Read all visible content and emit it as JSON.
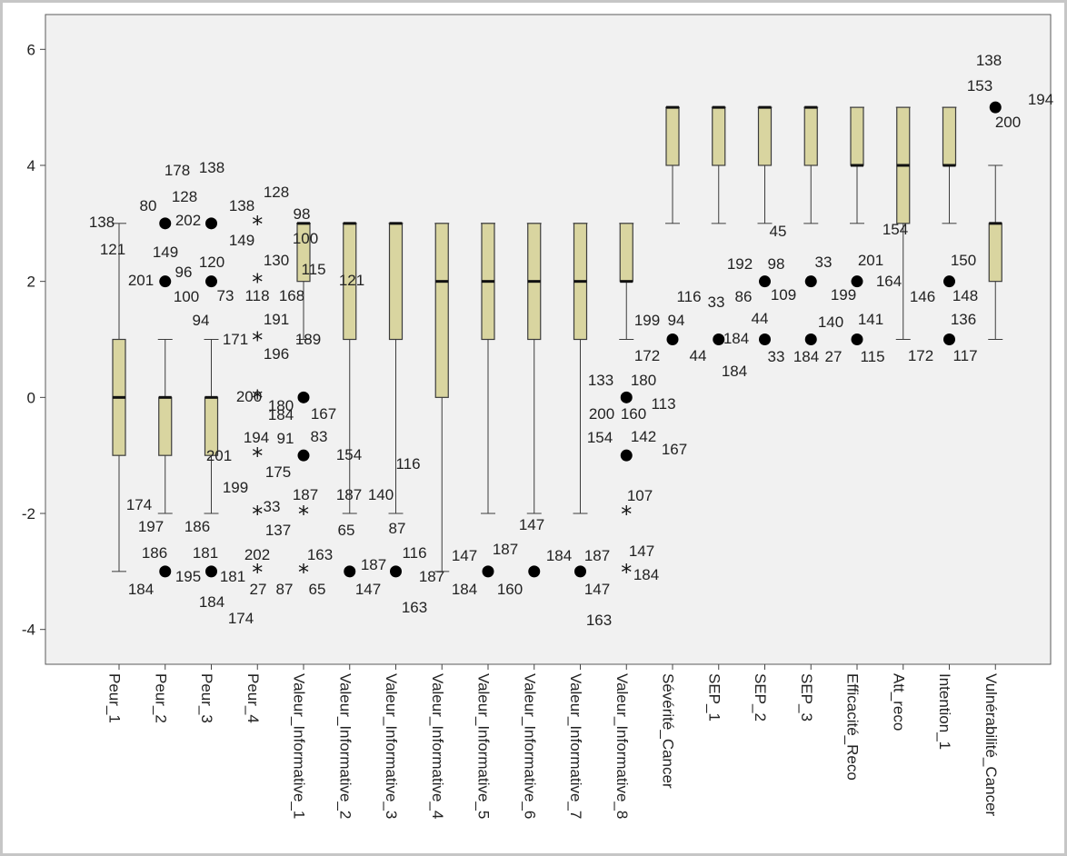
{
  "chart_data": {
    "type": "boxplot",
    "ylim": [
      -4.6,
      6.6
    ],
    "yticks": [
      -4,
      -2,
      0,
      2,
      4,
      6
    ],
    "colors": {
      "box_fill": "#d9d5a0",
      "box_stroke": "#3c3c3c",
      "plot_bg": "#f1f1f1",
      "text": "#222222"
    },
    "categories": [
      "Peur_1",
      "Peur_2",
      "Peur_3",
      "Peur_4",
      "Valeur_Informative_1",
      "Valeur_Informative_2",
      "Valeur_Informative_3",
      "Valeur_Informative_4",
      "Valeur_Informative_5",
      "Valeur_Informative_6",
      "Valeur_Informative_7",
      "Valeur_Informative_8",
      "Sévérité_Cancer",
      "SEP_1",
      "SEP_2",
      "SEP_3",
      "Efficacité_Reco",
      "Att_reco",
      "Intention_1",
      "Vulnérabilité_Cancer"
    ],
    "boxes": [
      {
        "q1": -1,
        "median": 0,
        "q3": 1,
        "wlo": -3,
        "whi": 3
      },
      {
        "q1": -1,
        "median": 0,
        "q3": 0,
        "wlo": -2,
        "whi": 1
      },
      {
        "q1": -1,
        "median": 0,
        "q3": 0,
        "wlo": -2,
        "whi": 1
      },
      null,
      {
        "q1": 2,
        "median": 3,
        "q3": 3,
        "wlo": 1,
        "whi": 3
      },
      {
        "q1": 1,
        "median": 3,
        "q3": 3,
        "wlo": -2,
        "whi": 3
      },
      {
        "q1": 1,
        "median": 3,
        "q3": 3,
        "wlo": -2,
        "whi": 3
      },
      {
        "q1": 0,
        "median": 2,
        "q3": 3,
        "wlo": -3,
        "whi": 3
      },
      {
        "q1": 1,
        "median": 2,
        "q3": 3,
        "wlo": -2,
        "whi": 3
      },
      {
        "q1": 1,
        "median": 2,
        "q3": 3,
        "wlo": -2,
        "whi": 3
      },
      {
        "q1": 1,
        "median": 2,
        "q3": 3,
        "wlo": -2,
        "whi": 3
      },
      {
        "q1": 2,
        "median": 2,
        "q3": 3,
        "wlo": 1,
        "whi": 3
      },
      {
        "q1": 4,
        "median": 5,
        "q3": 5,
        "wlo": 3,
        "whi": 5
      },
      {
        "q1": 4,
        "median": 5,
        "q3": 5,
        "wlo": 3,
        "whi": 5
      },
      {
        "q1": 4,
        "median": 5,
        "q3": 5,
        "wlo": 3,
        "whi": 5
      },
      {
        "q1": 4,
        "median": 5,
        "q3": 5,
        "wlo": 3,
        "whi": 5
      },
      {
        "q1": 4,
        "median": 4,
        "q3": 5,
        "wlo": 3,
        "whi": 5
      },
      {
        "q1": 3,
        "median": 4,
        "q3": 5,
        "wlo": 1,
        "whi": 5
      },
      {
        "q1": 4,
        "median": 4,
        "q3": 5,
        "wlo": 3,
        "whi": 5
      },
      {
        "q1": 2,
        "median": 3,
        "q3": 3,
        "wlo": 1,
        "whi": 4
      }
    ],
    "outliers": [
      {
        "cat": 1,
        "y": 3,
        "kind": "circle"
      },
      {
        "cat": 1,
        "y": 2,
        "kind": "circle"
      },
      {
        "cat": 1,
        "y": -3,
        "kind": "circle"
      },
      {
        "cat": 2,
        "y": 3,
        "kind": "circle"
      },
      {
        "cat": 2,
        "y": 2,
        "kind": "circle"
      },
      {
        "cat": 2,
        "y": -3,
        "kind": "circle"
      },
      {
        "cat": 3,
        "y": 3,
        "kind": "star"
      },
      {
        "cat": 3,
        "y": 2,
        "kind": "star"
      },
      {
        "cat": 3,
        "y": 1,
        "kind": "star"
      },
      {
        "cat": 3,
        "y": 0,
        "kind": "star"
      },
      {
        "cat": 3,
        "y": -1,
        "kind": "star"
      },
      {
        "cat": 3,
        "y": -2,
        "kind": "star"
      },
      {
        "cat": 3,
        "y": -3,
        "kind": "star"
      },
      {
        "cat": 4,
        "y": 0,
        "kind": "circle"
      },
      {
        "cat": 4,
        "y": -1,
        "kind": "circle"
      },
      {
        "cat": 4,
        "y": -2,
        "kind": "star"
      },
      {
        "cat": 4,
        "y": -3,
        "kind": "star"
      },
      {
        "cat": 5,
        "y": -3,
        "kind": "circle"
      },
      {
        "cat": 6,
        "y": -3,
        "kind": "circle"
      },
      {
        "cat": 8,
        "y": -3,
        "kind": "circle"
      },
      {
        "cat": 9,
        "y": -3,
        "kind": "circle"
      },
      {
        "cat": 10,
        "y": -3,
        "kind": "circle"
      },
      {
        "cat": 11,
        "y": 0,
        "kind": "circle"
      },
      {
        "cat": 11,
        "y": -1,
        "kind": "circle"
      },
      {
        "cat": 11,
        "y": -2,
        "kind": "star"
      },
      {
        "cat": 11,
        "y": -3,
        "kind": "star"
      },
      {
        "cat": 12,
        "y": 1,
        "kind": "circle"
      },
      {
        "cat": 13,
        "y": 1,
        "kind": "circle"
      },
      {
        "cat": 14,
        "y": 2,
        "kind": "circle"
      },
      {
        "cat": 14,
        "y": 1,
        "kind": "circle"
      },
      {
        "cat": 15,
        "y": 2,
        "kind": "circle"
      },
      {
        "cat": 15,
        "y": 1,
        "kind": "circle"
      },
      {
        "cat": 16,
        "y": 2,
        "kind": "circle"
      },
      {
        "cat": 16,
        "y": 1,
        "kind": "circle"
      },
      {
        "cat": 18,
        "y": 2,
        "kind": "circle"
      },
      {
        "cat": 18,
        "y": 1,
        "kind": "circle"
      },
      {
        "cat": 19,
        "y": 5,
        "kind": "circle"
      }
    ],
    "case_labels": [
      {
        "text": "138",
        "x": 112,
        "y": 250
      },
      {
        "text": "121",
        "x": 124,
        "y": 280
      },
      {
        "text": "178",
        "x": 195,
        "y": 193
      },
      {
        "text": "138",
        "x": 233,
        "y": 190
      },
      {
        "text": "80",
        "x": 163,
        "y": 232
      },
      {
        "text": "128",
        "x": 203,
        "y": 222
      },
      {
        "text": "202",
        "x": 207,
        "y": 248
      },
      {
        "text": "149",
        "x": 182,
        "y": 283
      },
      {
        "text": "201",
        "x": 155,
        "y": 314
      },
      {
        "text": "96",
        "x": 202,
        "y": 305
      },
      {
        "text": "100",
        "x": 205,
        "y": 332
      },
      {
        "text": "120",
        "x": 233,
        "y": 294
      },
      {
        "text": "73",
        "x": 248,
        "y": 331
      },
      {
        "text": "94",
        "x": 221,
        "y": 358
      },
      {
        "text": "138",
        "x": 266,
        "y": 232
      },
      {
        "text": "128",
        "x": 304,
        "y": 217
      },
      {
        "text": "149",
        "x": 266,
        "y": 270
      },
      {
        "text": "130",
        "x": 304,
        "y": 292
      },
      {
        "text": "118",
        "x": 283,
        "y": 331
      },
      {
        "text": "168",
        "x": 321,
        "y": 331
      },
      {
        "text": "191",
        "x": 304,
        "y": 357
      },
      {
        "text": "171",
        "x": 259,
        "y": 379
      },
      {
        "text": "196",
        "x": 304,
        "y": 395
      },
      {
        "text": "189",
        "x": 339,
        "y": 379
      },
      {
        "text": "98",
        "x": 332,
        "y": 241
      },
      {
        "text": "100",
        "x": 336,
        "y": 268
      },
      {
        "text": "115",
        "x": 345,
        "y": 302
      },
      {
        "text": "121",
        "x": 387,
        "y": 314
      },
      {
        "text": "180",
        "x": 309,
        "y": 452
      },
      {
        "text": "200",
        "x": 274,
        "y": 442
      },
      {
        "text": "184",
        "x": 309,
        "y": 462
      },
      {
        "text": "167",
        "x": 356,
        "y": 461
      },
      {
        "text": "194",
        "x": 282,
        "y": 487
      },
      {
        "text": "91",
        "x": 314,
        "y": 488
      },
      {
        "text": "83",
        "x": 351,
        "y": 486
      },
      {
        "text": "201",
        "x": 241,
        "y": 507
      },
      {
        "text": "175",
        "x": 306,
        "y": 525
      },
      {
        "text": "154",
        "x": 384,
        "y": 506
      },
      {
        "text": "116",
        "x": 449,
        "y": 516
      },
      {
        "text": "199",
        "x": 259,
        "y": 542
      },
      {
        "text": "33",
        "x": 299,
        "y": 563
      },
      {
        "text": "187",
        "x": 336,
        "y": 550
      },
      {
        "text": "137",
        "x": 306,
        "y": 589
      },
      {
        "text": "187",
        "x": 384,
        "y": 550
      },
      {
        "text": "140",
        "x": 419,
        "y": 550
      },
      {
        "text": "65",
        "x": 381,
        "y": 589
      },
      {
        "text": "87",
        "x": 437,
        "y": 587
      },
      {
        "text": "174",
        "x": 153,
        "y": 561
      },
      {
        "text": "197",
        "x": 166,
        "y": 585
      },
      {
        "text": "186",
        "x": 217,
        "y": 585
      },
      {
        "text": "186",
        "x": 170,
        "y": 614
      },
      {
        "text": "181",
        "x": 226,
        "y": 614
      },
      {
        "text": "195",
        "x": 207,
        "y": 640
      },
      {
        "text": "181",
        "x": 256,
        "y": 640
      },
      {
        "text": "184",
        "x": 155,
        "y": 654
      },
      {
        "text": "184",
        "x": 233,
        "y": 668
      },
      {
        "text": "174",
        "x": 265,
        "y": 686
      },
      {
        "text": "202",
        "x": 283,
        "y": 616
      },
      {
        "text": "27",
        "x": 284,
        "y": 654
      },
      {
        "text": "87",
        "x": 313,
        "y": 654
      },
      {
        "text": "65",
        "x": 349,
        "y": 654
      },
      {
        "text": "163",
        "x": 352,
        "y": 616
      },
      {
        "text": "187",
        "x": 411,
        "y": 627
      },
      {
        "text": "147",
        "x": 405,
        "y": 654
      },
      {
        "text": "116",
        "x": 456,
        "y": 614
      },
      {
        "text": "187",
        "x": 475,
        "y": 640
      },
      {
        "text": "163",
        "x": 456,
        "y": 674
      },
      {
        "text": "147",
        "x": 511,
        "y": 617
      },
      {
        "text": "184",
        "x": 511,
        "y": 654
      },
      {
        "text": "187",
        "x": 556,
        "y": 610
      },
      {
        "text": "160",
        "x": 561,
        "y": 654
      },
      {
        "text": "184",
        "x": 615,
        "y": 617
      },
      {
        "text": "187",
        "x": 657,
        "y": 617
      },
      {
        "text": "147",
        "x": 657,
        "y": 654
      },
      {
        "text": "163",
        "x": 659,
        "y": 688
      },
      {
        "text": "147",
        "x": 585,
        "y": 583
      },
      {
        "text": "107",
        "x": 704,
        "y": 551
      },
      {
        "text": "147",
        "x": 706,
        "y": 612
      },
      {
        "text": "184",
        "x": 711,
        "y": 638
      },
      {
        "text": "133",
        "x": 661,
        "y": 424
      },
      {
        "text": "180",
        "x": 708,
        "y": 424
      },
      {
        "text": "200",
        "x": 662,
        "y": 461
      },
      {
        "text": "160",
        "x": 697,
        "y": 461
      },
      {
        "text": "113",
        "x": 730,
        "y": 450
      },
      {
        "text": "154",
        "x": 660,
        "y": 487
      },
      {
        "text": "142",
        "x": 708,
        "y": 486
      },
      {
        "text": "167",
        "x": 742,
        "y": 500
      },
      {
        "text": "199",
        "x": 712,
        "y": 358
      },
      {
        "text": "94",
        "x": 744,
        "y": 358
      },
      {
        "text": "172",
        "x": 712,
        "y": 397
      },
      {
        "text": "116",
        "x": 758,
        "y": 332
      },
      {
        "text": "33",
        "x": 788,
        "y": 338
      },
      {
        "text": "44",
        "x": 768,
        "y": 397
      },
      {
        "text": "184",
        "x": 810,
        "y": 378
      },
      {
        "text": "184",
        "x": 808,
        "y": 414
      },
      {
        "text": "86",
        "x": 818,
        "y": 332
      },
      {
        "text": "192",
        "x": 814,
        "y": 296
      },
      {
        "text": "98",
        "x": 854,
        "y": 296
      },
      {
        "text": "45",
        "x": 856,
        "y": 260
      },
      {
        "text": "44",
        "x": 836,
        "y": 356
      },
      {
        "text": "33",
        "x": 854,
        "y": 398
      },
      {
        "text": "109",
        "x": 862,
        "y": 330
      },
      {
        "text": "33",
        "x": 906,
        "y": 294
      },
      {
        "text": "140",
        "x": 914,
        "y": 360
      },
      {
        "text": "141",
        "x": 958,
        "y": 357
      },
      {
        "text": "184",
        "x": 887,
        "y": 398
      },
      {
        "text": "27",
        "x": 917,
        "y": 398
      },
      {
        "text": "115",
        "x": 960,
        "y": 398
      },
      {
        "text": "199",
        "x": 928,
        "y": 330
      },
      {
        "text": "201",
        "x": 958,
        "y": 292
      },
      {
        "text": "154",
        "x": 985,
        "y": 258
      },
      {
        "text": "164",
        "x": 978,
        "y": 315
      },
      {
        "text": "146",
        "x": 1015,
        "y": 332
      },
      {
        "text": "150",
        "x": 1060,
        "y": 292
      },
      {
        "text": "148",
        "x": 1062,
        "y": 331
      },
      {
        "text": "136",
        "x": 1060,
        "y": 357
      },
      {
        "text": "172",
        "x": 1013,
        "y": 397
      },
      {
        "text": "117",
        "x": 1062,
        "y": 397
      },
      {
        "text": "138",
        "x": 1088,
        "y": 72
      },
      {
        "text": "153",
        "x": 1078,
        "y": 100
      },
      {
        "text": "200",
        "x": 1109,
        "y": 140
      },
      {
        "text": "194",
        "x": 1145,
        "y": 115
      }
    ]
  }
}
